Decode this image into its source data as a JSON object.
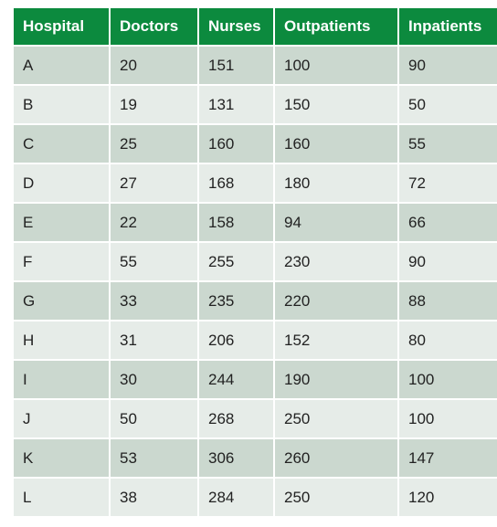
{
  "table": {
    "headers": [
      "Hospital",
      "Doctors",
      "Nurses",
      "Outpatients",
      "Inpatients"
    ],
    "rows": [
      [
        "A",
        "20",
        "151",
        "100",
        "90"
      ],
      [
        "B",
        "19",
        "131",
        "150",
        "50"
      ],
      [
        "C",
        "25",
        "160",
        "160",
        "55"
      ],
      [
        "D",
        "27",
        "168",
        "180",
        "72"
      ],
      [
        "E",
        "22",
        "158",
        "94",
        "66"
      ],
      [
        "F",
        "55",
        "255",
        "230",
        "90"
      ],
      [
        "G",
        "33",
        "235",
        "220",
        "88"
      ],
      [
        "H",
        "31",
        "206",
        "152",
        "80"
      ],
      [
        "I",
        "30",
        "244",
        "190",
        "100"
      ],
      [
        "J",
        "50",
        "268",
        "250",
        "100"
      ],
      [
        "K",
        "53",
        "306",
        "260",
        "147"
      ],
      [
        "L",
        "38",
        "284",
        "250",
        "120"
      ]
    ]
  },
  "colors": {
    "header_background": "#0c8a3e",
    "header_text": "#ffffff",
    "row_dark": "#cbd8cf",
    "row_light": "#e6ece8"
  }
}
